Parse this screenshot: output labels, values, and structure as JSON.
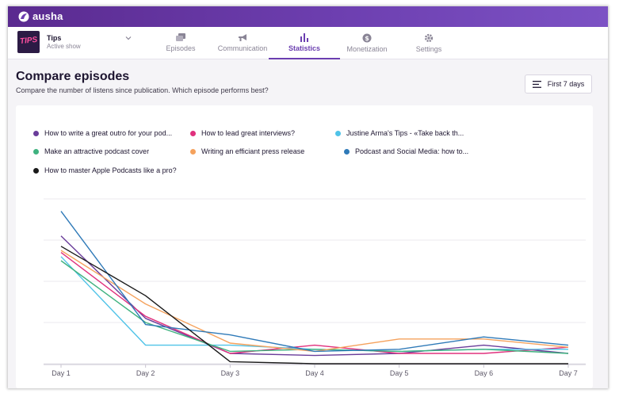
{
  "app": {
    "logo_text": "ausha"
  },
  "show": {
    "name": "Tips",
    "status": "Active show",
    "thumb_text": "TIPS"
  },
  "tabs": [
    {
      "label": "Episodes",
      "icon": "episodes-icon",
      "active": false
    },
    {
      "label": "Communication",
      "icon": "megaphone-icon",
      "active": false
    },
    {
      "label": "Statistics",
      "icon": "bar-chart-icon",
      "active": true
    },
    {
      "label": "Monetization",
      "icon": "dollar-icon",
      "active": false
    },
    {
      "label": "Settings",
      "icon": "gear-icon",
      "active": false
    }
  ],
  "page": {
    "title": "Compare episodes",
    "subtitle": "Compare the number of listens since publication. Which episode performs best?",
    "range_label": "First 7 days"
  },
  "legend": [
    {
      "label": "How to write a great outro for your pod...",
      "color": "#6a3d9a"
    },
    {
      "label": "How to lead great interviews?",
      "color": "#e0307d"
    },
    {
      "label": "Justine Arma's Tips - «Take back th...",
      "color": "#4fc3e8"
    },
    {
      "label": "Make an attractive podcast cover",
      "color": "#3fb27f"
    },
    {
      "label": "Writing an efficiant press release",
      "color": "#f5a25d"
    },
    {
      "label": "Podcast and Social Media: how to...",
      "color": "#2f7ab8"
    },
    {
      "label": "How to master Apple Podcasts like a pro?",
      "color": "#1a1a1a"
    }
  ],
  "chart_data": {
    "type": "line",
    "categories": [
      "Day 1",
      "Day 2",
      "Day 3",
      "Day 4",
      "Day 5",
      "Day 6",
      "Day 7"
    ],
    "ylim": [
      0,
      40
    ],
    "grid": true,
    "series": [
      {
        "name": "How to write a great outro for your pod...",
        "color": "#6a3d9a",
        "values": [
          31,
          11,
          2.5,
          2,
          2.5,
          4.5,
          2.5
        ]
      },
      {
        "name": "How to lead great interviews?",
        "color": "#e0307d",
        "values": [
          27,
          11.5,
          2.5,
          4.5,
          2.5,
          2.5,
          4
        ]
      },
      {
        "name": "Justine Arma's Tips - «Take back th...",
        "color": "#4fc3e8",
        "values": [
          26,
          4.5,
          4.5,
          3.5,
          3,
          3.5,
          3.5
        ]
      },
      {
        "name": "Make an attractive podcast cover",
        "color": "#3fb27f",
        "values": [
          25,
          10,
          3,
          3.5,
          3,
          3.5,
          2.5
        ]
      },
      {
        "name": "Writing an efficiant press release",
        "color": "#f5a25d",
        "values": [
          27.5,
          14.5,
          5,
          3,
          6,
          6,
          4
        ]
      },
      {
        "name": "Podcast and Social Media: how to...",
        "color": "#2f7ab8",
        "values": [
          37,
          9.5,
          7,
          3,
          3.5,
          6.5,
          4.5
        ]
      },
      {
        "name": "How to master Apple Podcasts like a pro?",
        "color": "#1a1a1a",
        "values": [
          28.5,
          16.5,
          0.5,
          0,
          0,
          0,
          0
        ]
      }
    ]
  }
}
